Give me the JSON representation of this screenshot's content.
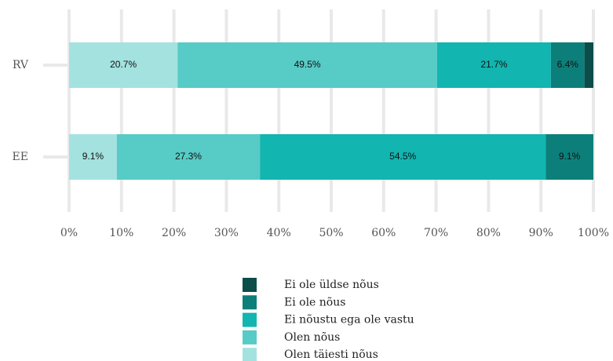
{
  "chart_data": {
    "type": "stacked_barh",
    "categories": [
      "RV",
      "EE"
    ],
    "series": [
      {
        "name": "Olen täiesti nõus",
        "color": "#a3e2df",
        "values": [
          20.7,
          9.1
        ],
        "value_labels": [
          "20.7%",
          "9.1%"
        ]
      },
      {
        "name": "Olen nõus",
        "color": "#57cbc6",
        "values": [
          49.5,
          27.3
        ],
        "value_labels": [
          "49.5%",
          "27.3%"
        ]
      },
      {
        "name": "Ei nõustu ega ole vastu",
        "color": "#12b5b0",
        "values": [
          21.7,
          54.5
        ],
        "value_labels": [
          "21.7%",
          "54.5%"
        ]
      },
      {
        "name": "Ei ole nõus",
        "color": "#0d7f7a",
        "values": [
          6.4,
          9.1
        ],
        "value_labels": [
          "6.4%",
          "9.1%"
        ]
      },
      {
        "name": "Ei ole üldse nõus",
        "color": "#0b4d4a",
        "values": [
          1.7,
          0
        ],
        "value_labels": [
          null,
          null
        ]
      }
    ],
    "xlim": [
      0,
      100
    ],
    "xticks": [
      {
        "value": 0,
        "label": "0%"
      },
      {
        "value": 10,
        "label": "10%"
      },
      {
        "value": 20,
        "label": "20%"
      },
      {
        "value": 30,
        "label": "30%"
      },
      {
        "value": 40,
        "label": "40%"
      },
      {
        "value": 50,
        "label": "50%"
      },
      {
        "value": 60,
        "label": "60%"
      },
      {
        "value": 70,
        "label": "70%"
      },
      {
        "value": 80,
        "label": "80%"
      },
      {
        "value": 90,
        "label": "90%"
      },
      {
        "value": 100,
        "label": "100%"
      }
    ],
    "grid": true,
    "legend": "bottom"
  }
}
